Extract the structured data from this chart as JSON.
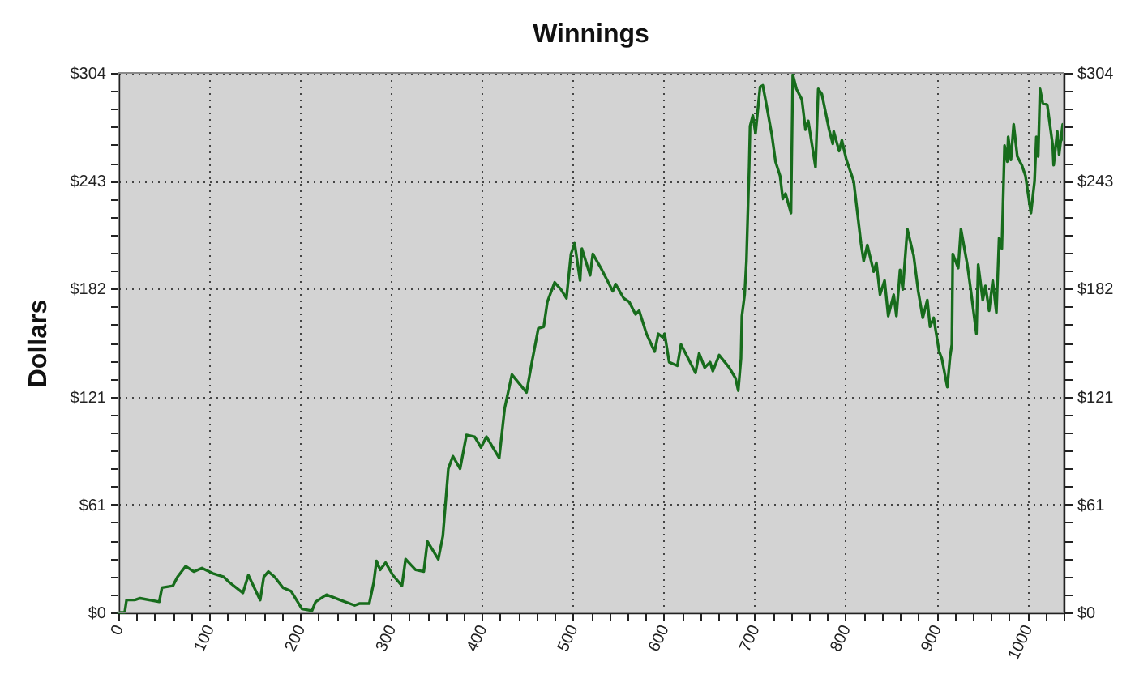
{
  "chart_data": {
    "type": "line",
    "title": "Winnings",
    "ylabel": "Dollars",
    "x": [
      0,
      7,
      9,
      18,
      24,
      45,
      48,
      60,
      65,
      74,
      83,
      92,
      104,
      116,
      122,
      137,
      143,
      156,
      160,
      165,
      172,
      181,
      190,
      202,
      213,
      217,
      229,
      244,
      260,
      265,
      276,
      281,
      284,
      288,
      294,
      302,
      312,
      316,
      327,
      336,
      340,
      352,
      357,
      363,
      368,
      376,
      383,
      392,
      399,
      405,
      419,
      425,
      433,
      449,
      455,
      462,
      468,
      472,
      480,
      487,
      493,
      498,
      502,
      508,
      510,
      519,
      522,
      532,
      544,
      547,
      556,
      562,
      569,
      573,
      581,
      590,
      594,
      599,
      601,
      606,
      615,
      619,
      635,
      639,
      645,
      651,
      654,
      661,
      672,
      679,
      682,
      685,
      686,
      689,
      691,
      694,
      695,
      698,
      701,
      706,
      709,
      713,
      719,
      723,
      728,
      731,
      734,
      740,
      742,
      746,
      752,
      756,
      759,
      767,
      770,
      774,
      782,
      786,
      787,
      793,
      796,
      801,
      809,
      817,
      820,
      824,
      831,
      834,
      838,
      843,
      847,
      853,
      856,
      860,
      863,
      868,
      875,
      880,
      885,
      890,
      893,
      897,
      903,
      906,
      912,
      915,
      917,
      918,
      924,
      927,
      934,
      938,
      944,
      946,
      951,
      954,
      958,
      962,
      966,
      969,
      972,
      975,
      978,
      979,
      982,
      985,
      989,
      994,
      998,
      1004,
      1008,
      1010,
      1012,
      1014,
      1017,
      1022,
      1028,
      1029,
      1033,
      1035,
      1039,
      1040
    ],
    "series": [
      {
        "color": "#176c1c",
        "values": [
          0,
          0,
          7,
          7,
          8,
          6,
          14,
          15,
          20,
          26,
          23,
          25,
          22,
          20,
          17,
          11,
          21,
          7,
          20,
          23,
          20,
          14,
          12,
          2,
          1,
          6,
          10,
          7,
          4,
          5,
          5,
          17,
          29,
          24,
          28,
          21,
          15,
          30,
          24,
          23,
          40,
          30,
          43,
          81,
          88,
          81,
          100,
          99,
          93,
          99,
          87,
          115,
          134,
          124,
          141,
          160,
          161,
          175,
          186,
          182,
          177,
          202,
          208,
          187,
          205,
          190,
          202,
          193,
          181,
          185,
          177,
          175,
          168,
          170,
          157,
          147,
          157,
          155,
          157,
          141,
          139,
          151,
          135,
          146,
          138,
          141,
          136,
          145,
          138,
          132,
          125,
          143,
          167,
          179,
          198,
          251,
          274,
          280,
          270,
          296,
          297,
          286,
          269,
          254,
          246,
          233,
          236,
          225,
          303,
          295,
          289,
          272,
          277,
          251,
          295,
          292,
          272,
          264,
          271,
          260,
          266,
          255,
          243,
          208,
          198,
          207,
          192,
          197,
          179,
          187,
          167,
          179,
          167,
          193,
          182,
          216,
          201,
          181,
          166,
          176,
          161,
          166,
          147,
          143,
          127,
          144,
          151,
          202,
          194,
          216,
          196,
          181,
          157,
          196,
          176,
          184,
          170,
          187,
          169,
          211,
          205,
          263,
          254,
          268,
          255,
          275,
          257,
          252,
          246,
          225,
          243,
          268,
          257,
          295,
          287,
          286,
          263,
          252,
          271,
          258,
          275,
          266
        ]
      }
    ],
    "xlim": [
      0,
      1040
    ],
    "xticks": [
      0,
      {
        "value": 20,
        "label": null
      },
      {
        "value": 40,
        "label": null
      },
      {
        "value": 60,
        "label": null
      },
      {
        "value": 80,
        "label": null
      },
      100,
      {
        "value": 120,
        "label": null
      },
      {
        "value": 140,
        "label": null
      },
      {
        "value": 160,
        "label": null
      },
      {
        "value": 180,
        "label": null
      },
      200,
      {
        "value": 220,
        "label": null
      },
      {
        "value": 240,
        "label": null
      },
      {
        "value": 260,
        "label": null
      },
      {
        "value": 280,
        "label": null
      },
      300,
      {
        "value": 320,
        "label": null
      },
      {
        "value": 340,
        "label": null
      },
      {
        "value": 360,
        "label": null
      },
      {
        "value": 380,
        "label": null
      },
      400,
      {
        "value": 420,
        "label": null
      },
      {
        "value": 440,
        "label": null
      },
      {
        "value": 460,
        "label": null
      },
      {
        "value": 480,
        "label": null
      },
      500,
      {
        "value": 520,
        "label": null
      },
      {
        "value": 540,
        "label": null
      },
      {
        "value": 560,
        "label": null
      },
      {
        "value": 580,
        "label": null
      },
      600,
      {
        "value": 620,
        "label": null
      },
      {
        "value": 640,
        "label": null
      },
      {
        "value": 660,
        "label": null
      },
      {
        "value": 680,
        "label": null
      },
      700,
      {
        "value": 720,
        "label": null
      },
      {
        "value": 740,
        "label": null
      },
      {
        "value": 760,
        "label": null
      },
      {
        "value": 780,
        "label": null
      },
      800,
      {
        "value": 820,
        "label": null
      },
      {
        "value": 840,
        "label": null
      },
      {
        "value": 860,
        "label": null
      },
      {
        "value": 880,
        "label": null
      },
      900,
      {
        "value": 920,
        "label": null
      },
      {
        "value": 940,
        "label": null
      },
      {
        "value": 960,
        "label": null
      },
      {
        "value": 980,
        "label": null
      },
      1000,
      {
        "value": 1020,
        "label": null
      },
      {
        "value": 1040,
        "label": null
      }
    ],
    "ylim": [
      0,
      304
    ],
    "yticks": [
      {
        "value": 0,
        "label": "$0"
      },
      {
        "value": 10.1,
        "label": null
      },
      {
        "value": 20.3,
        "label": null
      },
      {
        "value": 30.4,
        "label": null
      },
      {
        "value": 40.5,
        "label": null
      },
      {
        "value": 50.7,
        "label": null
      },
      {
        "value": 60.8,
        "label": "$61"
      },
      {
        "value": 70.9,
        "label": null
      },
      {
        "value": 81.1,
        "label": null
      },
      {
        "value": 91.2,
        "label": null
      },
      {
        "value": 101.3,
        "label": null
      },
      {
        "value": 111.5,
        "label": null
      },
      {
        "value": 121.4,
        "label": "$121"
      },
      {
        "value": 131.7,
        "label": null
      },
      {
        "value": 141.9,
        "label": null
      },
      {
        "value": 152,
        "label": null
      },
      {
        "value": 162.1,
        "label": null
      },
      {
        "value": 172.3,
        "label": null
      },
      {
        "value": 182.4,
        "label": "$182"
      },
      {
        "value": 192.5,
        "label": null
      },
      {
        "value": 202.7,
        "label": null
      },
      {
        "value": 212.8,
        "label": null
      },
      {
        "value": 222.9,
        "label": null
      },
      {
        "value": 233.1,
        "label": null
      },
      {
        "value": 243.2,
        "label": "$243"
      },
      {
        "value": 253.3,
        "label": null
      },
      {
        "value": 263.5,
        "label": null
      },
      {
        "value": 273.6,
        "label": null
      },
      {
        "value": 283.7,
        "label": null
      },
      {
        "value": 293.9,
        "label": null
      },
      {
        "value": 304,
        "label": "$304"
      }
    ],
    "y2lim": [
      0,
      304
    ],
    "y2ticks": [
      {
        "value": 0,
        "label": "$0"
      },
      {
        "value": 10.1,
        "label": null
      },
      {
        "value": 20.3,
        "label": null
      },
      {
        "value": 30.4,
        "label": null
      },
      {
        "value": 40.5,
        "label": null
      },
      {
        "value": 50.7,
        "label": null
      },
      {
        "value": 60.8,
        "label": "$61"
      },
      {
        "value": 70.9,
        "label": null
      },
      {
        "value": 81.1,
        "label": null
      },
      {
        "value": 91.2,
        "label": null
      },
      {
        "value": 101.3,
        "label": null
      },
      {
        "value": 111.5,
        "label": null
      },
      {
        "value": 121.4,
        "label": "$121"
      },
      {
        "value": 131.7,
        "label": null
      },
      {
        "value": 141.9,
        "label": null
      },
      {
        "value": 152,
        "label": null
      },
      {
        "value": 162.1,
        "label": null
      },
      {
        "value": 172.3,
        "label": null
      },
      {
        "value": 182.4,
        "label": "$182"
      },
      {
        "value": 192.5,
        "label": null
      },
      {
        "value": 202.7,
        "label": null
      },
      {
        "value": 212.8,
        "label": null
      },
      {
        "value": 222.9,
        "label": null
      },
      {
        "value": 233.1,
        "label": null
      },
      {
        "value": 243.2,
        "label": "$243"
      },
      {
        "value": 253.3,
        "label": null
      },
      {
        "value": 263.5,
        "label": null
      },
      {
        "value": 273.6,
        "label": null
      },
      {
        "value": 283.7,
        "label": null
      },
      {
        "value": 293.9,
        "label": null
      },
      {
        "value": 304,
        "label": "$304"
      }
    ],
    "grid": true
  }
}
